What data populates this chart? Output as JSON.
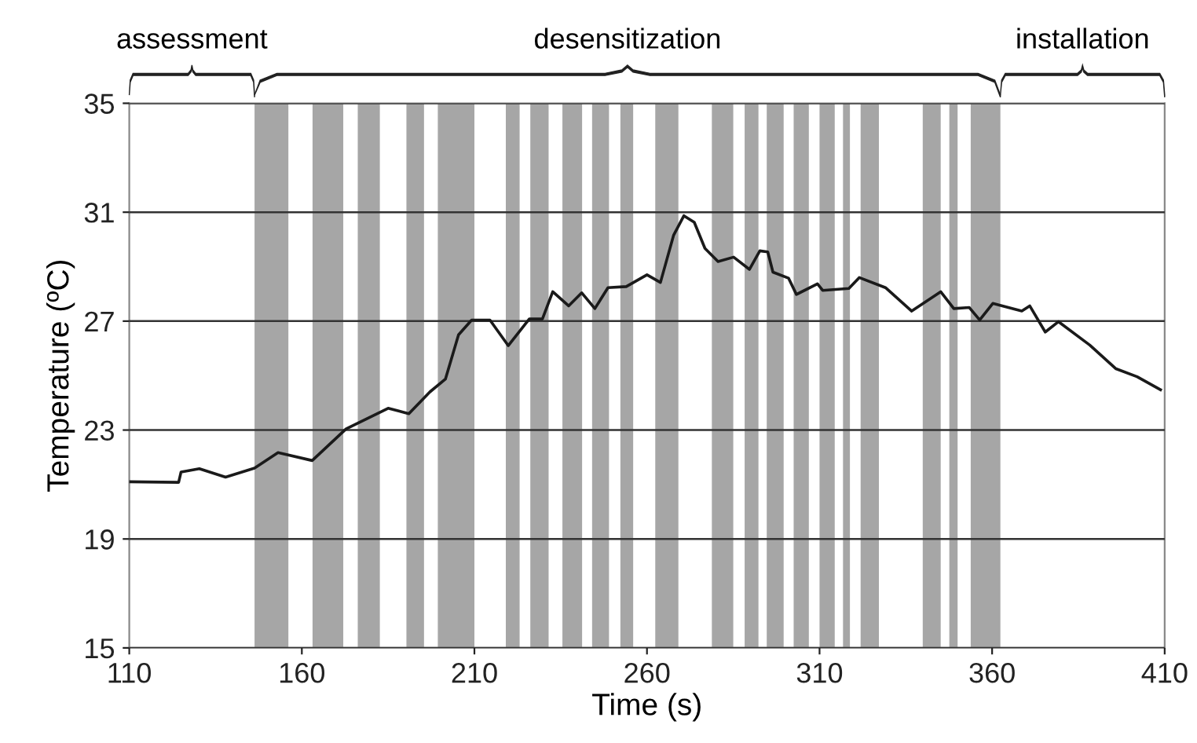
{
  "chart_data": {
    "type": "line",
    "xlabel": "Time (s)",
    "ylabel": "Temperature (ºC)",
    "annotations": [
      "assessment",
      "desensitization",
      "installation"
    ],
    "xlim": [
      110,
      410
    ],
    "ylim": [
      15,
      35
    ],
    "xticks": [
      110,
      160,
      210,
      260,
      310,
      360,
      410
    ],
    "yticks": [
      15,
      19,
      23,
      27,
      31,
      35
    ],
    "grid": "y",
    "series": [
      {
        "color": "#1a1a1a",
        "x": [
          110,
          124.3,
          125,
          130.3,
          137.9,
          146.3,
          153.1,
          163,
          172.8,
          185,
          191,
          197.1,
          201.6,
          205.4,
          209.2,
          214.5,
          219.8,
          225.9,
          229.7,
          232.7,
          237.3,
          241.1,
          244.9,
          248.7,
          254,
          260,
          263.9,
          267.7,
          270.7,
          273.7,
          276.8,
          280.6,
          285.1,
          289.7,
          292.7,
          295,
          296.5,
          301,
          303.3,
          309.4,
          310.9,
          318.5,
          321.5,
          329.1,
          336.7,
          345.1,
          348.9,
          353.4,
          356.4,
          360.2,
          368.6,
          370.9,
          375.4,
          379.2,
          388.3,
          395.9,
          402,
          408.8
        ],
        "values": [
          21.1,
          21.08,
          21.46,
          21.58,
          21.27,
          21.6,
          22.17,
          21.88,
          23.04,
          23.8,
          23.6,
          24.4,
          24.87,
          26.5,
          27.04,
          27.04,
          26.1,
          27.08,
          27.08,
          28.08,
          27.56,
          28.04,
          27.46,
          28.23,
          28.27,
          28.7,
          28.42,
          30.15,
          30.87,
          30.63,
          29.67,
          29.19,
          29.35,
          28.9,
          29.58,
          29.54,
          28.8,
          28.58,
          27.98,
          28.37,
          28.13,
          28.2,
          28.6,
          28.23,
          27.37,
          28.08,
          27.46,
          27.5,
          27.04,
          27.65,
          27.37,
          27.56,
          26.6,
          26.98,
          26.12,
          25.25,
          24.96,
          24.48
        ]
      }
    ],
    "bands": [
      {
        "axis": "x",
        "from": 146.3,
        "to": 156.1,
        "color": "#a6a6a6"
      },
      {
        "axis": "x",
        "from": 163.1,
        "to": 172.0,
        "color": "#a6a6a6"
      },
      {
        "axis": "x",
        "from": 176.2,
        "to": 182.6,
        "color": "#a6a6a6"
      },
      {
        "axis": "x",
        "from": 190.3,
        "to": 195.4,
        "color": "#a6a6a6"
      },
      {
        "axis": "x",
        "from": 199.4,
        "to": 210.0,
        "color": "#a6a6a6"
      },
      {
        "axis": "x",
        "from": 219.1,
        "to": 223.1,
        "color": "#a6a6a6"
      },
      {
        "axis": "x",
        "from": 226.2,
        "to": 231.5,
        "color": "#a6a6a6"
      },
      {
        "axis": "x",
        "from": 235.5,
        "to": 241.2,
        "color": "#a6a6a6"
      },
      {
        "axis": "x",
        "from": 244.1,
        "to": 249.0,
        "color": "#a6a6a6"
      },
      {
        "axis": "x",
        "from": 252.3,
        "to": 256.0,
        "color": "#a6a6a6"
      },
      {
        "axis": "x",
        "from": 262.4,
        "to": 269.1,
        "color": "#a6a6a6"
      },
      {
        "axis": "x",
        "from": 278.8,
        "to": 285.0,
        "color": "#a6a6a6"
      },
      {
        "axis": "x",
        "from": 288.3,
        "to": 292.3,
        "color": "#a6a6a6"
      },
      {
        "axis": "x",
        "from": 294.7,
        "to": 299.6,
        "color": "#a6a6a6"
      },
      {
        "axis": "x",
        "from": 302.5,
        "to": 306.9,
        "color": "#a6a6a6"
      },
      {
        "axis": "x",
        "from": 310.0,
        "to": 314.4,
        "color": "#a6a6a6"
      },
      {
        "axis": "x",
        "from": 316.8,
        "to": 318.8,
        "color": "#a6a6a6"
      },
      {
        "axis": "x",
        "from": 321.9,
        "to": 327.2,
        "color": "#a6a6a6"
      },
      {
        "axis": "x",
        "from": 339.9,
        "to": 345.1,
        "color": "#a6a6a6"
      },
      {
        "axis": "x",
        "from": 347.6,
        "to": 350.0,
        "color": "#a6a6a6"
      },
      {
        "axis": "x",
        "from": 353.8,
        "to": 362.4,
        "color": "#a6a6a6"
      }
    ]
  }
}
